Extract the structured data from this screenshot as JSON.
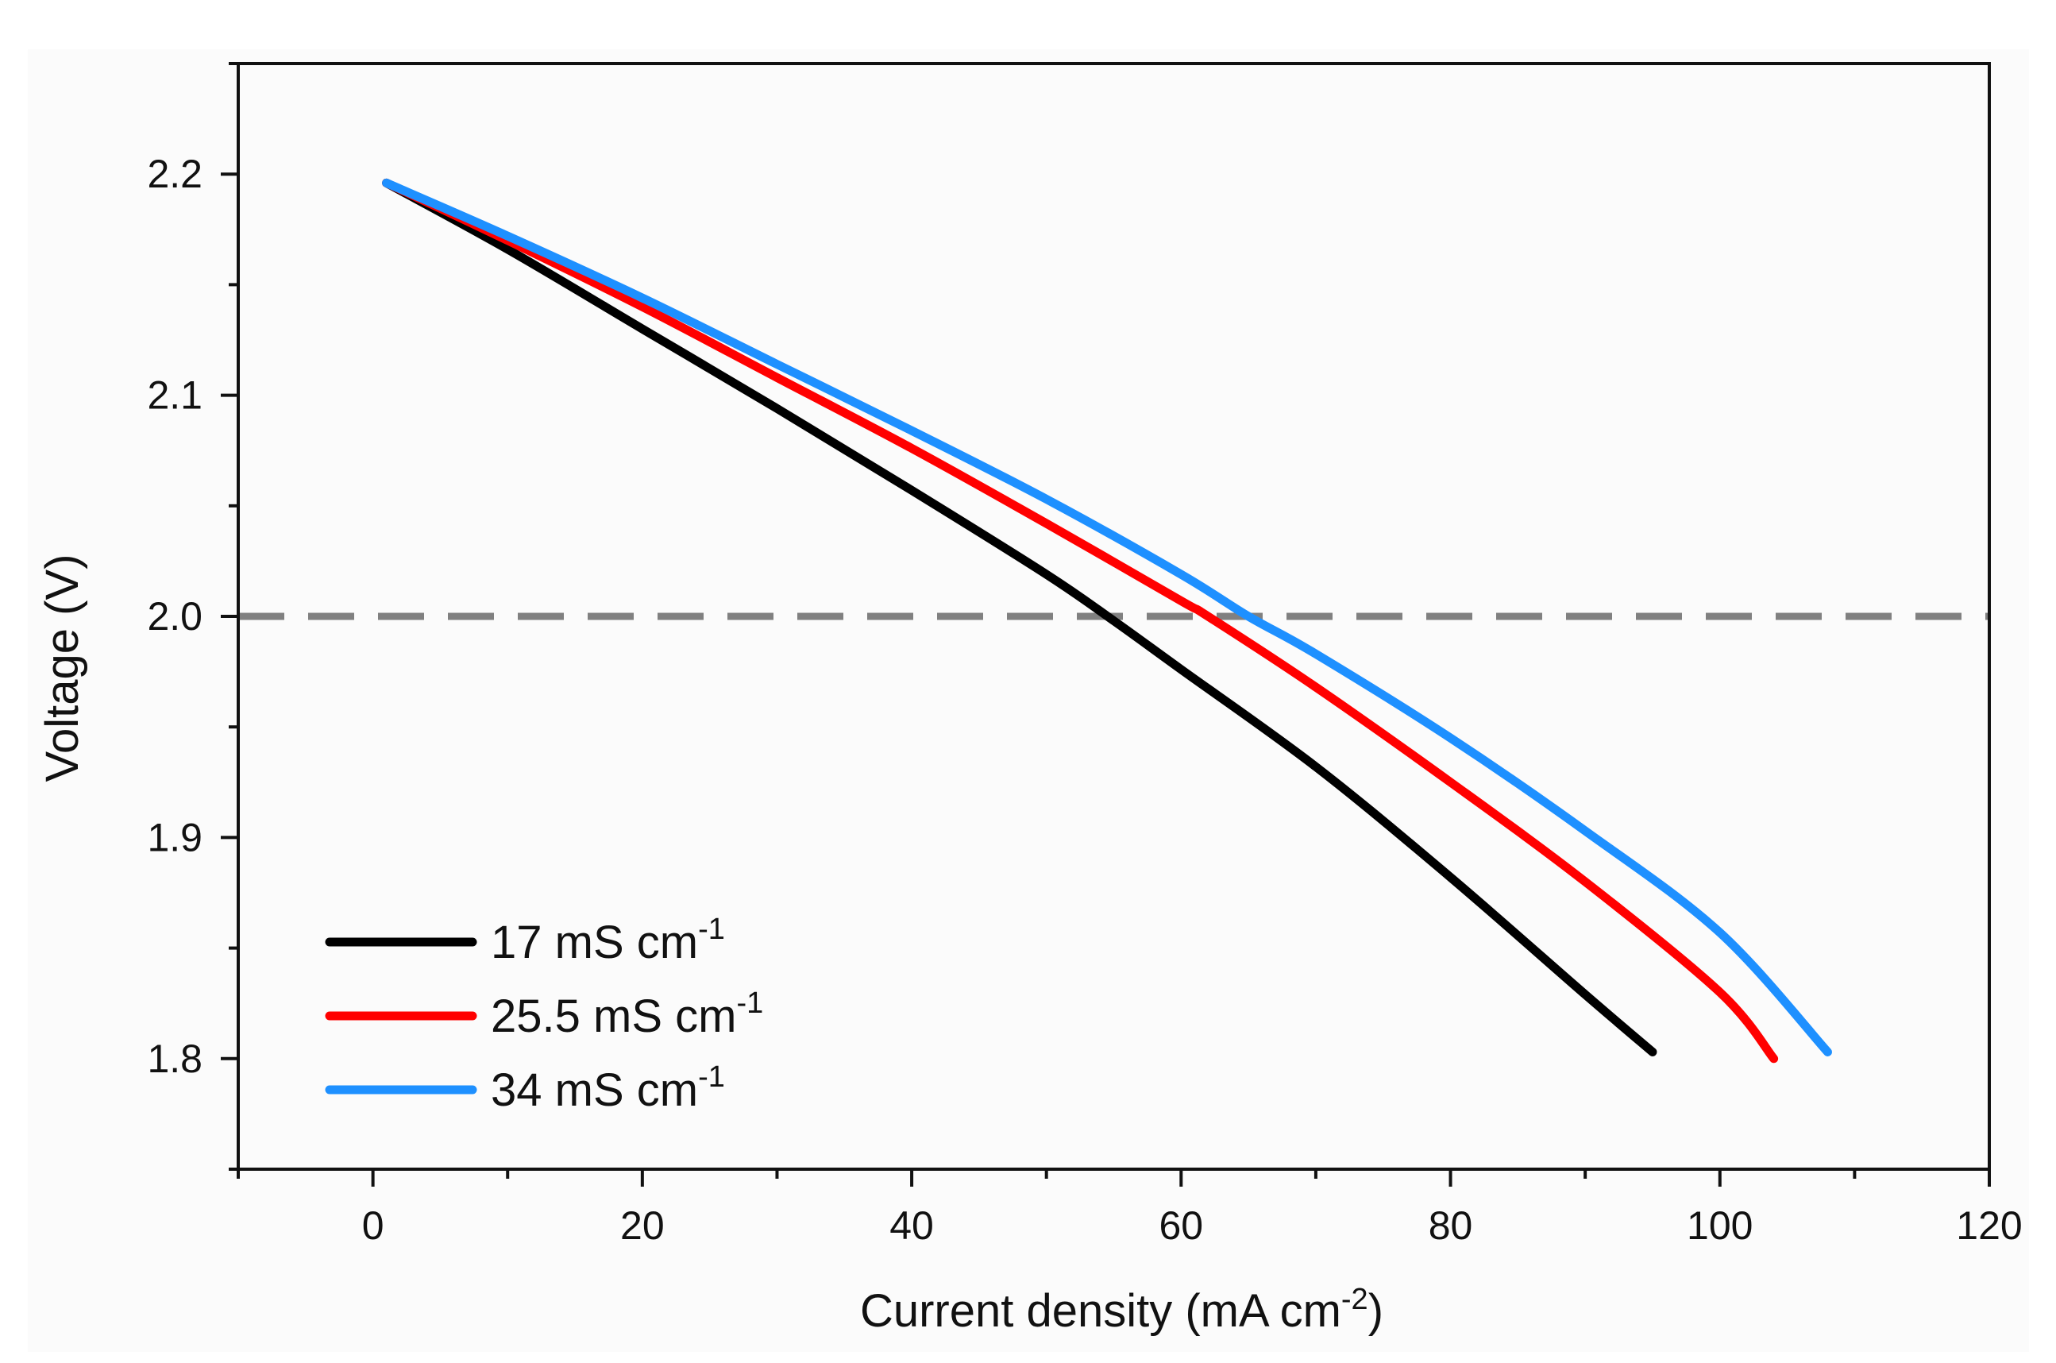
{
  "chart_data": {
    "type": "line",
    "xlabel": "Current density (mA cm",
    "xlabel_sup": "-2",
    "xlabel_suffix": ")",
    "ylabel": "Voltage (V)",
    "xlim": [
      -10,
      120
    ],
    "ylim": [
      1.75,
      2.25
    ],
    "x_ticks": [
      0,
      20,
      40,
      60,
      80,
      100,
      120
    ],
    "x_tick_labels": [
      "0",
      "20",
      "40",
      "60",
      "80",
      "100",
      "120"
    ],
    "y_ticks": [
      1.8,
      1.9,
      2.0,
      2.1,
      2.2
    ],
    "y_tick_labels": [
      "1.8",
      "1.9",
      "2.0",
      "2.1",
      "2.2"
    ],
    "reference_line": {
      "y": 2.0,
      "style": "dashed",
      "color": "#808080"
    },
    "legend_position": "bottom-left",
    "series": [
      {
        "name": "17 mS cm",
        "name_sup": "-1",
        "color": "#000000",
        "x": [
          1,
          10,
          20,
          30,
          40,
          50,
          55,
          60,
          70,
          80,
          90,
          95
        ],
        "y": [
          2.196,
          2.166,
          2.13,
          2.094,
          2.057,
          2.019,
          1.998,
          1.976,
          1.932,
          1.882,
          1.829,
          1.803
        ]
      },
      {
        "name": "25.5 mS cm",
        "name_sup": "-1",
        "color": "#ff0000",
        "x": [
          1,
          10,
          20,
          30,
          40,
          50,
          60,
          62,
          70,
          80,
          90,
          100,
          104
        ],
        "y": [
          2.196,
          2.17,
          2.14,
          2.108,
          2.076,
          2.042,
          2.007,
          2.0,
          1.968,
          1.925,
          1.88,
          1.83,
          1.8
        ]
      },
      {
        "name": "34 mS cm",
        "name_sup": "-1",
        "color": "#1e90ff",
        "x": [
          1,
          10,
          20,
          30,
          40,
          50,
          60,
          65,
          70,
          80,
          90,
          100,
          108
        ],
        "y": [
          2.196,
          2.172,
          2.144,
          2.114,
          2.084,
          2.053,
          2.019,
          2.0,
          1.983,
          1.945,
          1.903,
          1.857,
          1.803
        ]
      }
    ]
  }
}
